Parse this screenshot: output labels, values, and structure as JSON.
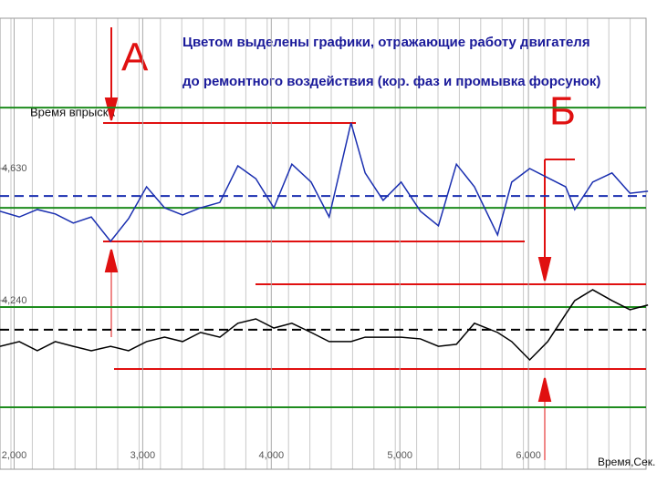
{
  "chart_data": {
    "type": "line",
    "title": [
      "Цветом выделены графики, отражающие работу двигателя",
      "до ремонтного воздействия (кор. фаз и промывка форсунок)"
    ],
    "y_label": "Время впрыска",
    "x_label": "Время,Сек.",
    "annotations": [
      "А",
      "Б"
    ],
    "xlim": [
      1.89,
      7.0
    ],
    "xticks": [
      {
        "value": 2,
        "label": "2,000"
      },
      {
        "value": 3,
        "label": "3,000"
      },
      {
        "value": 4,
        "label": "4,000"
      },
      {
        "value": 5,
        "label": "5,000"
      },
      {
        "value": 6,
        "label": "6,000"
      }
    ],
    "ylim": [
      3.742,
      5.074
    ],
    "yticks": [
      {
        "value": 4.63,
        "label": "4,630"
      },
      {
        "value": 4.24,
        "label": "4,240"
      }
    ],
    "x": [
      1.89,
      2.04,
      2.18,
      2.32,
      2.46,
      2.6,
      2.75,
      2.89,
      3.03,
      3.17,
      3.31,
      3.45,
      3.6,
      3.74,
      3.88,
      4.02,
      4.16,
      4.31,
      4.45,
      4.62,
      4.73,
      4.87,
      5.01,
      5.16,
      5.3,
      5.44,
      5.58,
      5.76,
      5.87,
      6.01,
      6.15,
      6.29,
      6.36,
      6.5,
      6.65,
      6.79,
      6.93
    ],
    "series": [
      {
        "color": "#1a2fb0",
        "values": [
          4.504,
          4.487,
          4.509,
          4.496,
          4.469,
          4.487,
          4.415,
          4.482,
          4.576,
          4.514,
          4.493,
          4.514,
          4.53,
          4.638,
          4.6,
          4.514,
          4.643,
          4.59,
          4.487,
          4.765,
          4.617,
          4.536,
          4.59,
          4.504,
          4.461,
          4.643,
          4.576,
          4.434,
          4.59,
          4.63,
          4.603,
          4.576,
          4.509,
          4.59,
          4.617,
          4.557,
          4.563
        ]
      },
      {
        "color": "#000000",
        "values": [
          4.105,
          4.119,
          4.092,
          4.119,
          4.105,
          4.092,
          4.105,
          4.092,
          4.119,
          4.132,
          4.119,
          4.146,
          4.132,
          4.173,
          4.186,
          4.159,
          4.173,
          4.146,
          4.119,
          4.119,
          4.132,
          4.132,
          4.132,
          4.127,
          4.105,
          4.111,
          4.173,
          4.146,
          4.119,
          4.065,
          4.119,
          4.2,
          4.24,
          4.272,
          4.24,
          4.213,
          4.227
        ]
      }
    ],
    "hlines": [
      {
        "value": 4.81,
        "color": "#1e8c1e",
        "dash": false
      },
      {
        "value": 4.514,
        "color": "#1e8c1e",
        "dash": false
      },
      {
        "value": 4.221,
        "color": "#1e8c1e",
        "dash": false
      },
      {
        "value": 3.925,
        "color": "#1e8c1e",
        "dash": false
      },
      {
        "value": 4.549,
        "color": "#1a2fb0",
        "dash": true
      },
      {
        "value": 4.154,
        "color": "#000000",
        "dash": true
      }
    ]
  }
}
